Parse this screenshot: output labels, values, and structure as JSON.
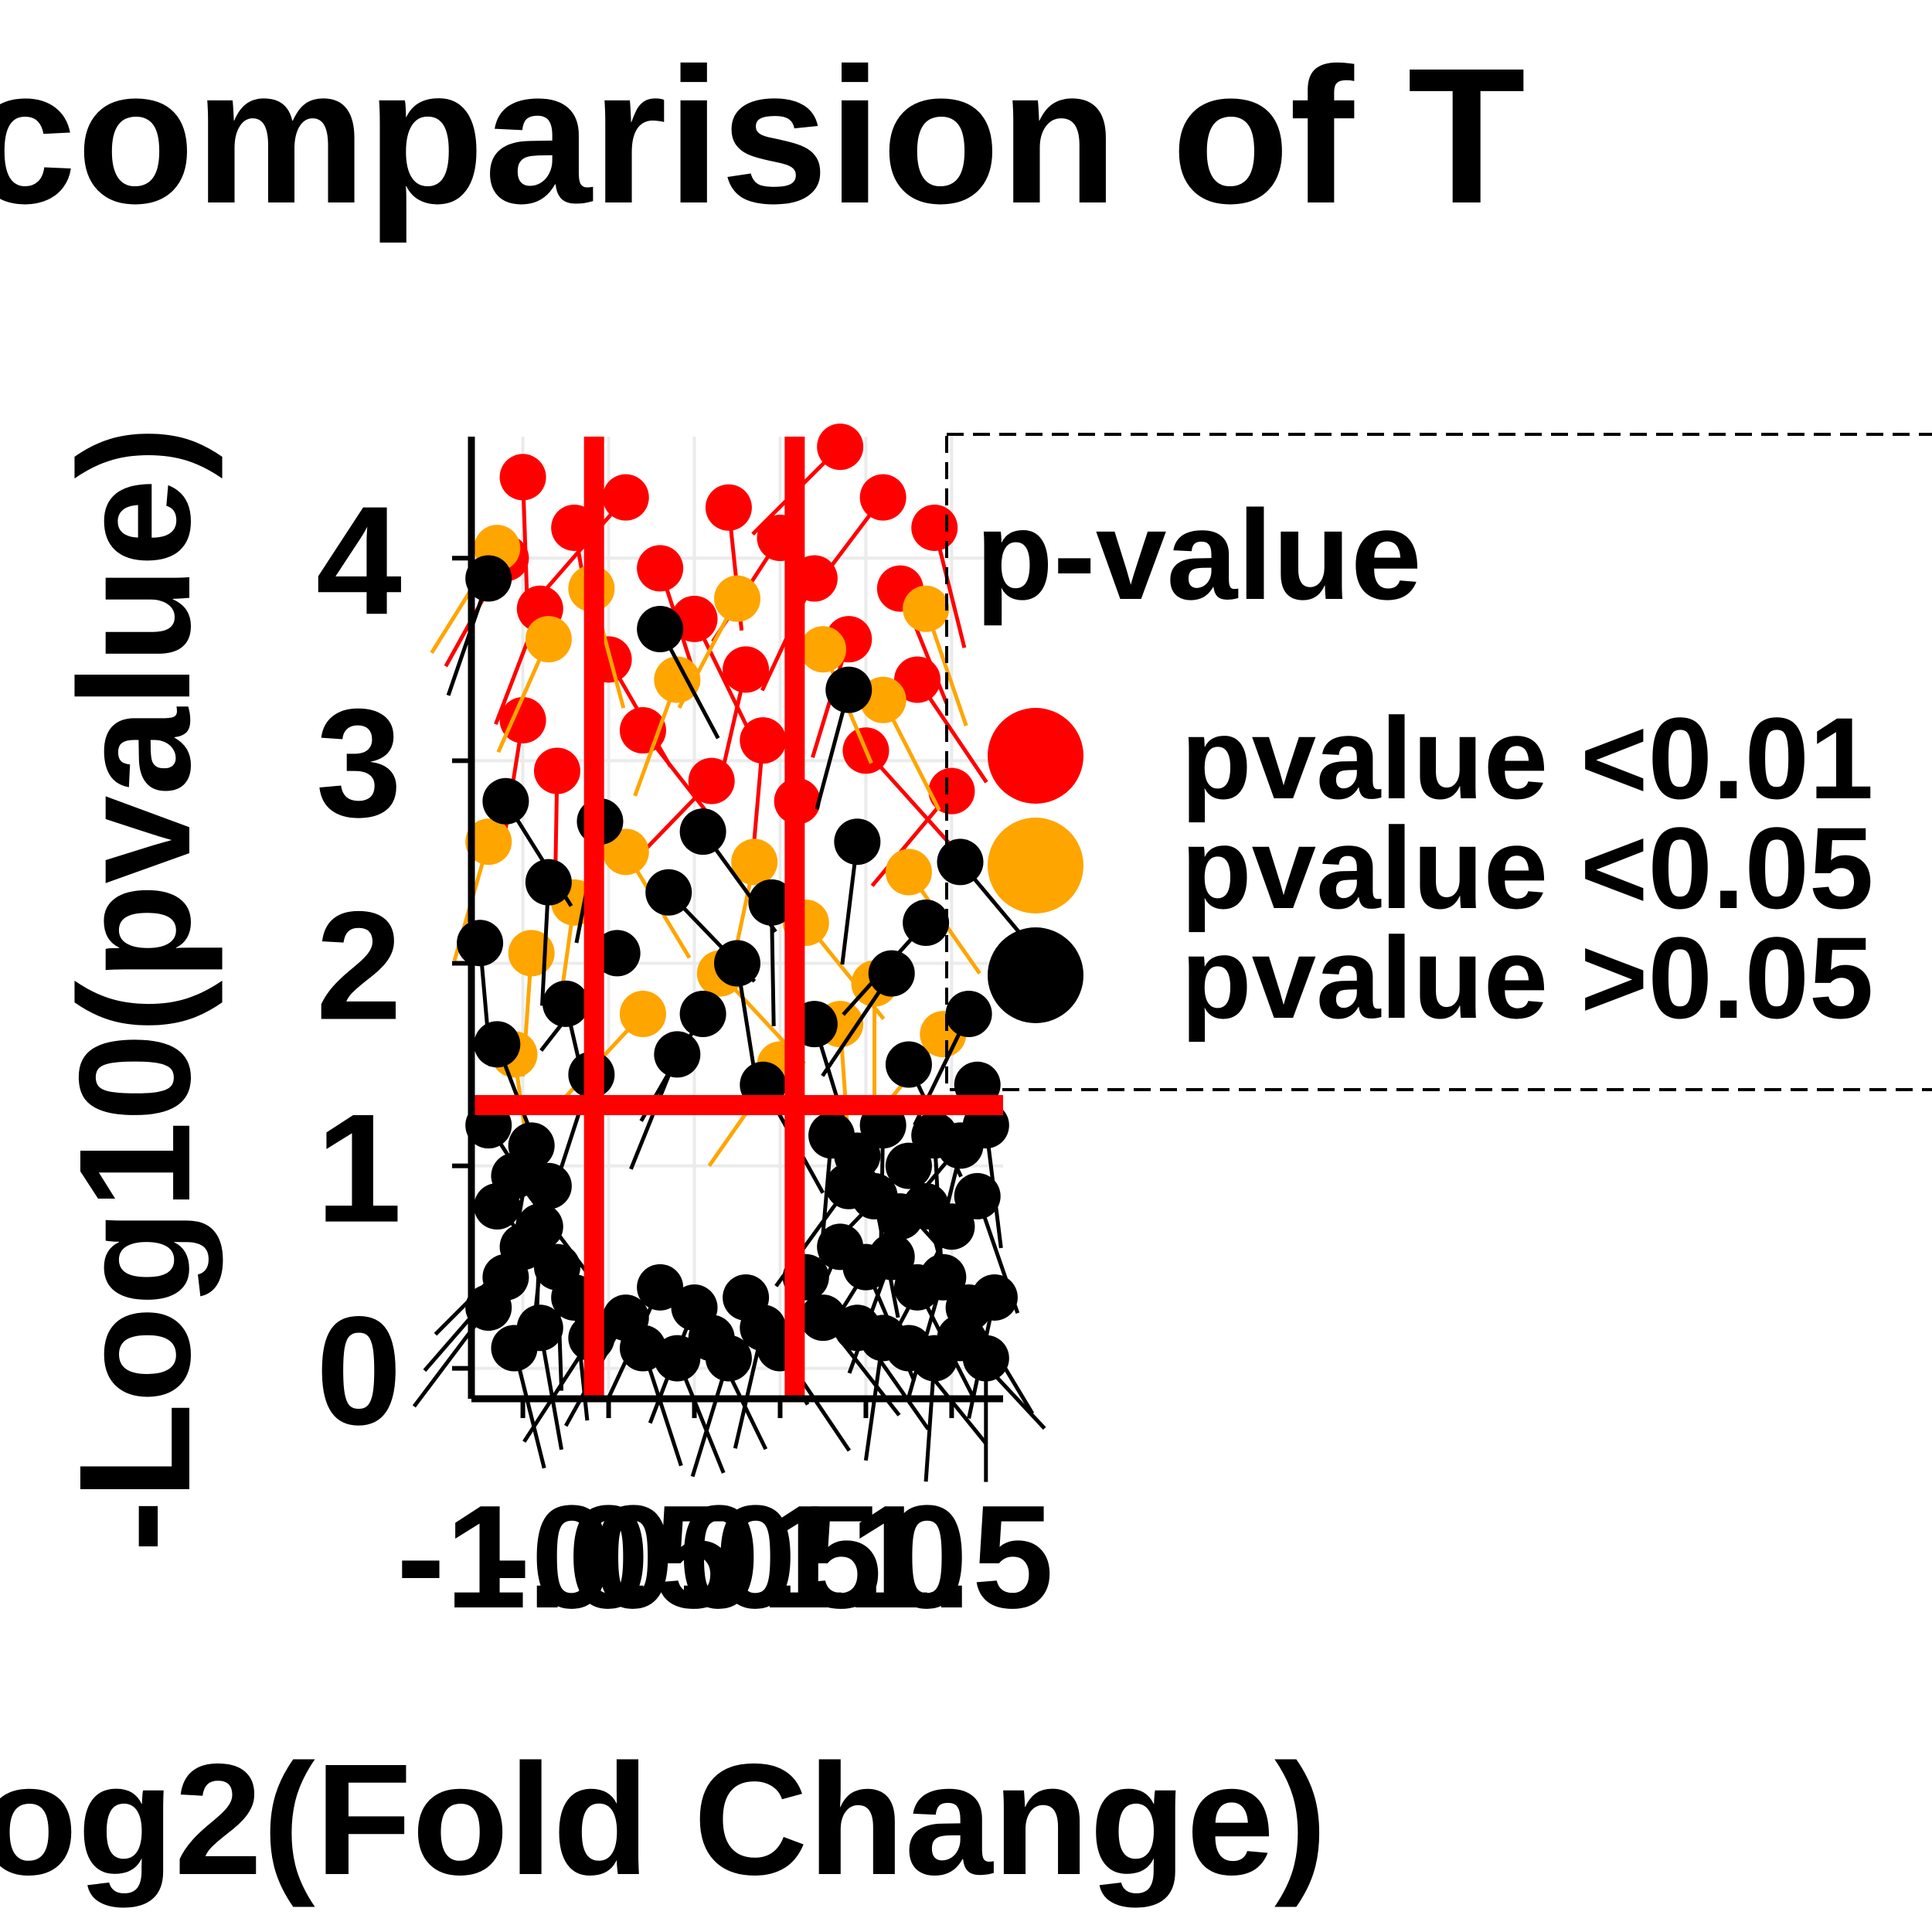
{
  "chart_data": {
    "type": "scatter",
    "title": "comparision of T",
    "xlabel": "og2(Fold Change)",
    "ylabel": "-Log10(pvalue)",
    "x_tick_labels": [
      "-1.0",
      "-0.5",
      "0.0",
      "0.5",
      "1.0",
      "1.5"
    ],
    "y_tick_labels": [
      "0",
      "1",
      "2",
      "3",
      "4"
    ],
    "xlim": [
      -1.3,
      1.8
    ],
    "ylim": [
      -0.15,
      4.6
    ],
    "grid": true,
    "threshold_lines": {
      "vertical": [
        -0.585,
        0.585
      ],
      "horizontal": 1.3,
      "color": "#ff0000"
    },
    "legend": {
      "title": "p-value",
      "position": "right",
      "items": [
        {
          "label": "pvalue <0.01",
          "color": "#ff0000"
        },
        {
          "label": "pvalue <0.05",
          "color": "#ffa500"
        },
        {
          "label": "pvalue >0.05",
          "color": "#000000"
        }
      ]
    },
    "series": [
      {
        "name": "pvalue <0.01",
        "color": "#ff0000",
        "points": [
          [
            0.85,
            4.55
          ],
          [
            -1.0,
            4.4
          ],
          [
            -0.4,
            4.3
          ],
          [
            0.2,
            4.25
          ],
          [
            1.1,
            4.3
          ],
          [
            -0.7,
            4.15
          ],
          [
            0.5,
            4.1
          ],
          [
            1.4,
            4.15
          ],
          [
            -1.1,
            4.0
          ],
          [
            -0.2,
            3.95
          ],
          [
            0.7,
            3.9
          ],
          [
            1.2,
            3.85
          ],
          [
            -0.9,
            3.75
          ],
          [
            0.0,
            3.7
          ],
          [
            0.9,
            3.6
          ],
          [
            -0.5,
            3.5
          ],
          [
            0.3,
            3.45
          ],
          [
            1.3,
            3.4
          ],
          [
            -1.0,
            3.2
          ],
          [
            -0.3,
            3.15
          ],
          [
            0.4,
            3.1
          ],
          [
            1.0,
            3.05
          ],
          [
            -0.8,
            2.95
          ],
          [
            0.1,
            2.9
          ],
          [
            0.6,
            2.8
          ],
          [
            1.5,
            2.85
          ]
        ]
      },
      {
        "name": "pvalue <0.05",
        "color": "#ffa500",
        "points": [
          [
            -1.15,
            4.05
          ],
          [
            -0.6,
            3.85
          ],
          [
            0.25,
            3.8
          ],
          [
            1.35,
            3.75
          ],
          [
            -0.85,
            3.6
          ],
          [
            0.75,
            3.55
          ],
          [
            -0.1,
            3.4
          ],
          [
            1.1,
            3.3
          ],
          [
            -1.2,
            2.6
          ],
          [
            -0.4,
            2.55
          ],
          [
            0.35,
            2.5
          ],
          [
            1.25,
            2.45
          ],
          [
            -0.7,
            2.3
          ],
          [
            0.65,
            2.2
          ],
          [
            -0.95,
            2.05
          ],
          [
            0.15,
            1.95
          ],
          [
            1.05,
            1.9
          ],
          [
            -0.3,
            1.75
          ],
          [
            0.85,
            1.7
          ],
          [
            1.45,
            1.65
          ],
          [
            -1.05,
            1.55
          ],
          [
            0.5,
            1.5
          ]
        ]
      },
      {
        "name": "pvalue >0.05",
        "color": "#000000",
        "points": [
          [
            -1.2,
            3.9
          ],
          [
            -0.2,
            3.65
          ],
          [
            0.9,
            3.35
          ],
          [
            -1.1,
            2.8
          ],
          [
            -0.55,
            2.7
          ],
          [
            0.05,
            2.65
          ],
          [
            0.95,
            2.6
          ],
          [
            1.55,
            2.5
          ],
          [
            -0.85,
            2.4
          ],
          [
            -0.15,
            2.35
          ],
          [
            0.45,
            2.3
          ],
          [
            1.35,
            2.2
          ],
          [
            -1.25,
            2.1
          ],
          [
            -0.45,
            2.05
          ],
          [
            0.25,
            2.0
          ],
          [
            1.15,
            1.95
          ],
          [
            -0.75,
            1.8
          ],
          [
            0.05,
            1.75
          ],
          [
            0.7,
            1.7
          ],
          [
            1.6,
            1.75
          ],
          [
            -1.15,
            1.6
          ],
          [
            -0.1,
            1.55
          ],
          [
            1.25,
            1.5
          ],
          [
            -0.6,
            1.45
          ],
          [
            0.4,
            1.4
          ],
          [
            1.65,
            1.4
          ],
          [
            -1.2,
            1.2
          ],
          [
            -0.95,
            1.1
          ],
          [
            -1.05,
            0.95
          ],
          [
            -0.85,
            0.9
          ],
          [
            -1.15,
            0.8
          ],
          [
            -0.9,
            0.7
          ],
          [
            -1.0,
            0.6
          ],
          [
            -0.8,
            0.5
          ],
          [
            -1.1,
            0.45
          ],
          [
            -0.7,
            0.35
          ],
          [
            -1.2,
            0.3
          ],
          [
            -0.9,
            0.2
          ],
          [
            -0.6,
            0.15
          ],
          [
            -1.05,
            0.1
          ],
          [
            -0.4,
            0.25
          ],
          [
            -0.3,
            0.1
          ],
          [
            -0.2,
            0.4
          ],
          [
            -0.1,
            0.05
          ],
          [
            0.0,
            0.3
          ],
          [
            0.1,
            0.15
          ],
          [
            0.2,
            0.05
          ],
          [
            0.3,
            0.35
          ],
          [
            0.4,
            0.2
          ],
          [
            0.5,
            0.1
          ],
          [
            0.65,
            0.45
          ],
          [
            0.75,
            0.25
          ],
          [
            0.8,
            1.15
          ],
          [
            0.95,
            1.05
          ],
          [
            1.1,
            1.2
          ],
          [
            1.25,
            1.0
          ],
          [
            1.4,
            1.15
          ],
          [
            1.55,
            1.1
          ],
          [
            1.7,
            1.2
          ],
          [
            0.9,
            0.9
          ],
          [
            1.05,
            0.85
          ],
          [
            1.2,
            0.75
          ],
          [
            1.35,
            0.8
          ],
          [
            1.5,
            0.7
          ],
          [
            1.65,
            0.85
          ],
          [
            0.85,
            0.6
          ],
          [
            1.0,
            0.5
          ],
          [
            1.15,
            0.55
          ],
          [
            1.3,
            0.4
          ],
          [
            1.45,
            0.45
          ],
          [
            1.6,
            0.3
          ],
          [
            1.75,
            0.35
          ],
          [
            0.95,
            0.2
          ],
          [
            1.1,
            0.15
          ],
          [
            1.25,
            0.1
          ],
          [
            1.4,
            0.05
          ],
          [
            1.55,
            0.15
          ],
          [
            1.7,
            0.05
          ]
        ]
      }
    ]
  }
}
